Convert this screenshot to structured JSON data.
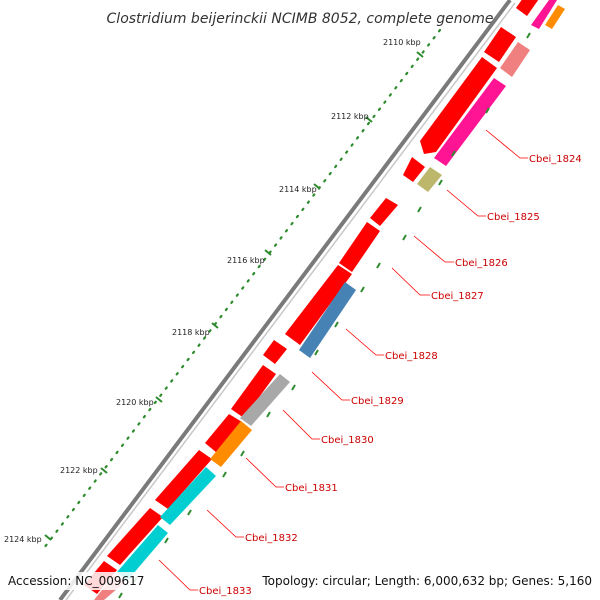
{
  "title": "Clostridium beijerinckii NCIMB 8052, complete genome",
  "footer": {
    "accession": "Accession: NC_009617",
    "summary": "Topology: circular; Length: 6,000,632 bp; Genes: 5,160"
  },
  "scale_labels": [
    "2110 kbp",
    "2112 kbp",
    "2114 kbp",
    "2116 kbp",
    "2118 kbp",
    "2120 kbp",
    "2122 kbp",
    "2124 kbp"
  ],
  "genes": [
    {
      "label": "Cbei_1824",
      "color": "#ff1493"
    },
    {
      "label": "Cbei_1825",
      "color": "#bdb76b"
    },
    {
      "label": "Cbei_1826",
      "color": "#ff0000"
    },
    {
      "label": "Cbei_1827",
      "color": "#ff0000"
    },
    {
      "label": "Cbei_1828",
      "color": "#4682b4"
    },
    {
      "label": "Cbei_1829",
      "color": "#ff0000"
    },
    {
      "label": "Cbei_1830",
      "color": "#b0b0b0"
    },
    {
      "label": "Cbei_1831",
      "color": "#ff8c00"
    },
    {
      "label": "Cbei_1832",
      "color": "#00ced1"
    },
    {
      "label": "Cbei_1833",
      "color": "#00ced1"
    }
  ],
  "colors": {
    "backbone": "#808080",
    "cds": "#ff0000",
    "tick": "#2e8b2e",
    "label_line": "#ff0000"
  }
}
